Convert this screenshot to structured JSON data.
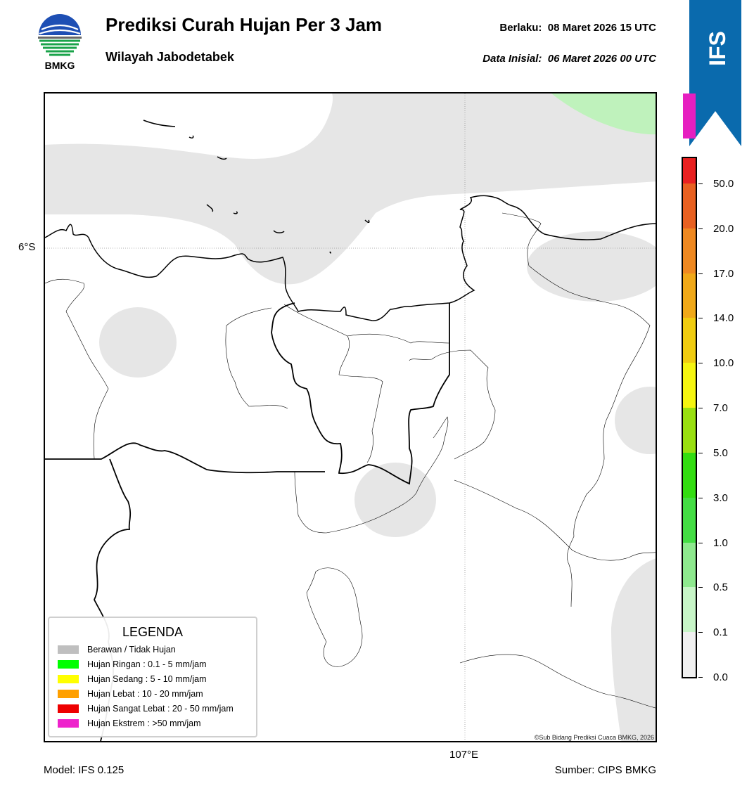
{
  "header": {
    "logo_text": "BMKG",
    "title": "Prediksi Curah Hujan Per 3 Jam",
    "subtitle": "Wilayah Jabodetabek",
    "valid_label": "Berlaku:",
    "valid_value": "08 Maret 2026 15 UTC",
    "init_label": "Data Inisial:",
    "init_value": "06 Maret 2026 00 UTC",
    "banner": "IFS",
    "banner_color": "#0a6aad"
  },
  "map": {
    "lat_label": "6°S",
    "lon_label": "107°E",
    "copyright": "©Sub Bidang Prediksi Cuaca BMKG, 2026",
    "cloud_color": "#e6e6e6",
    "light_rain_color": "#bff2bc"
  },
  "legend": {
    "title": "LEGENDA",
    "items": [
      {
        "label": "Berawan / Tidak Hujan",
        "color": "#bfbfbf"
      },
      {
        "label": "Hujan Ringan : 0.1 - 5 mm/jam",
        "color": "#00ff00"
      },
      {
        "label": "Hujan Sedang : 5 - 10 mm/jam",
        "color": "#ffff00"
      },
      {
        "label": "Hujan Lebat : 10 - 20 mm/jam",
        "color": "#ffa000"
      },
      {
        "label": "Hujan Sangat Lebat : 20 - 50 mm/jam",
        "color": "#ee0000"
      },
      {
        "label": "Hujan Ekstrem : >50 mm/jam",
        "color": "#ee22cc"
      }
    ]
  },
  "colorbar": {
    "ticks": [
      "0.0",
      "0.1",
      "0.5",
      "1.0",
      "3.0",
      "5.0",
      "7.0",
      "10.0",
      "14.0",
      "17.0",
      "20.0",
      "50.0"
    ],
    "colors": [
      "#f0f0f0",
      "#c7f5c7",
      "#8ee98e",
      "#44dd44",
      "#33dd11",
      "#99e011",
      "#f5f510",
      "#f0cc10",
      "#f0a818",
      "#ef8820",
      "#e86020",
      "#e82020",
      "#e61fc0"
    ]
  },
  "footer": {
    "model": "Model: IFS 0.125",
    "source": "Sumber: CIPS BMKG"
  }
}
